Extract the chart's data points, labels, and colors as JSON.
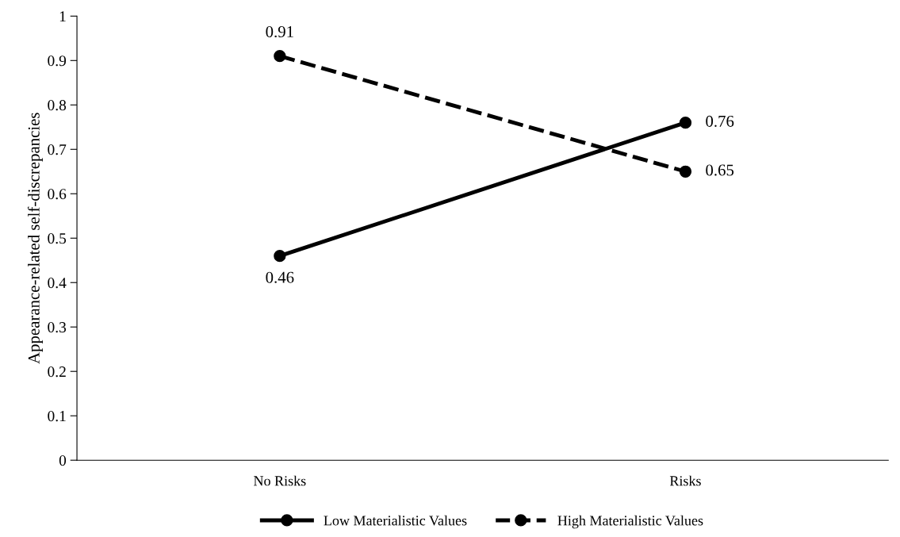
{
  "chart_data": {
    "type": "line",
    "ylabel": "Appearance-related self-discrepancies",
    "categories": [
      "No Risks",
      "Risks"
    ],
    "series": [
      {
        "name": "Low Materialistic Values",
        "color": "#000000",
        "values": [
          0.46,
          0.76
        ],
        "line_style": "solid"
      },
      {
        "name": "High Materialistic Values",
        "color": "#000000",
        "values": [
          0.91,
          0.65
        ],
        "line_style": "dashed"
      }
    ],
    "ylim": [
      0,
      1
    ],
    "yticks": [
      0,
      {
        "value": 0.1,
        "label": "0.1"
      },
      {
        "value": 0.2,
        "label": "0.2"
      },
      {
        "value": 0.3,
        "label": "0.3"
      },
      {
        "value": 0.4,
        "label": "0.4"
      },
      {
        "value": 0.5,
        "label": "0.5"
      },
      {
        "value": 0.6,
        "label": "0.6"
      },
      {
        "value": 0.7,
        "label": "0.7"
      },
      {
        "value": 0.8,
        "label": "0.8"
      },
      {
        "value": 0.9,
        "label": "0.9"
      },
      1
    ],
    "marker": "circle",
    "data_labels": true,
    "legend": "bottom",
    "grid": false
  }
}
